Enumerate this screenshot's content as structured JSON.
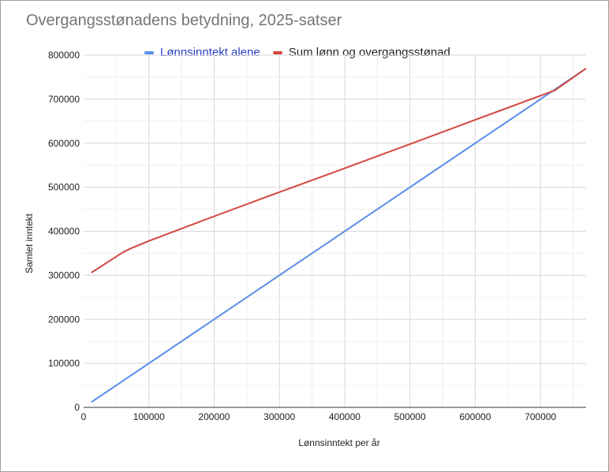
{
  "chart_data": {
    "type": "line",
    "title": "Overgangsstønadens betydning, 2025-satser",
    "xlabel": "Lønnsinntekt per år",
    "ylabel": "Samlet inntekt",
    "xlim": [
      0,
      770000
    ],
    "ylim": [
      0,
      800000
    ],
    "x_ticks": [
      0,
      100000,
      200000,
      300000,
      400000,
      500000,
      600000,
      700000
    ],
    "y_ticks": [
      0,
      100000,
      200000,
      300000,
      400000,
      500000,
      600000,
      700000,
      800000
    ],
    "grid": true,
    "legend_position": "top",
    "series": [
      {
        "name": "Lønnsinntekt alene",
        "color": "#5b8ee6",
        "points": [
          [
            12000,
            12000
          ],
          [
            770000,
            770000
          ]
        ]
      },
      {
        "name": "Sum lønn og overgangsstønad",
        "color": "#d2473f",
        "points": [
          [
            12000,
            306000
          ],
          [
            60000,
            352000
          ],
          [
            72000,
            361000
          ],
          [
            100000,
            378000
          ],
          [
            200000,
            434000
          ],
          [
            300000,
            489000
          ],
          [
            400000,
            543000
          ],
          [
            500000,
            598000
          ],
          [
            600000,
            653000
          ],
          [
            700000,
            708000
          ],
          [
            722000,
            720000
          ],
          [
            770000,
            770000
          ]
        ]
      }
    ]
  }
}
